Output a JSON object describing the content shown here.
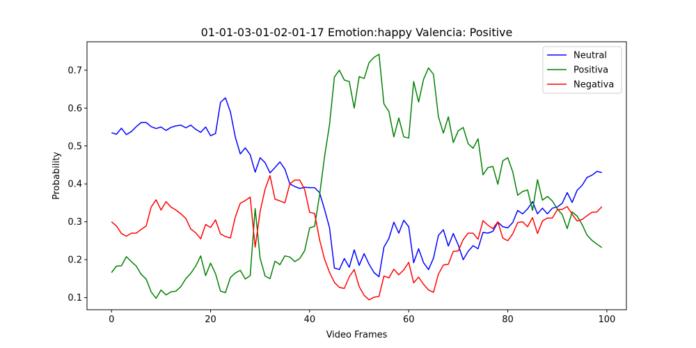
{
  "chart_data": {
    "type": "line",
    "title": "01-01-03-01-02-01-17 Emotion:happy Valencia: Positive",
    "xlabel": "Video Frames",
    "ylabel": "Probability",
    "xlim": [
      -4.95,
      103.95
    ],
    "ylim": [
      0.068,
      0.775
    ],
    "xticks": [
      0,
      20,
      40,
      60,
      80,
      100
    ],
    "yticks": [
      0.1,
      0.2,
      0.3,
      0.4,
      0.5,
      0.6,
      0.7
    ],
    "legend_position": "top-right",
    "series": [
      {
        "name": "Neutral",
        "color": "#0000ff",
        "values": [
          0.535,
          0.531,
          0.547,
          0.53,
          0.538,
          0.551,
          0.562,
          0.562,
          0.551,
          0.546,
          0.55,
          0.541,
          0.549,
          0.553,
          0.555,
          0.548,
          0.555,
          0.544,
          0.536,
          0.55,
          0.527,
          0.533,
          0.615,
          0.627,
          0.59,
          0.523,
          0.479,
          0.495,
          0.477,
          0.431,
          0.469,
          0.456,
          0.429,
          0.443,
          0.458,
          0.439,
          0.4,
          0.393,
          0.388,
          0.391,
          0.39,
          0.39,
          0.377,
          0.333,
          0.285,
          0.178,
          0.174,
          0.203,
          0.18,
          0.226,
          0.185,
          0.216,
          0.188,
          0.166,
          0.155,
          0.233,
          0.256,
          0.299,
          0.27,
          0.304,
          0.287,
          0.192,
          0.229,
          0.192,
          0.174,
          0.204,
          0.264,
          0.279,
          0.236,
          0.269,
          0.239,
          0.2,
          0.222,
          0.237,
          0.229,
          0.272,
          0.27,
          0.275,
          0.299,
          0.287,
          0.284,
          0.298,
          0.33,
          0.321,
          0.334,
          0.353,
          0.321,
          0.336,
          0.321,
          0.336,
          0.339,
          0.349,
          0.377,
          0.351,
          0.383,
          0.396,
          0.417,
          0.423,
          0.433,
          0.43
        ]
      },
      {
        "name": "Positiva",
        "color": "#008000",
        "values": [
          0.166,
          0.183,
          0.184,
          0.208,
          0.195,
          0.183,
          0.161,
          0.149,
          0.115,
          0.098,
          0.12,
          0.107,
          0.115,
          0.117,
          0.129,
          0.15,
          0.164,
          0.183,
          0.21,
          0.158,
          0.191,
          0.163,
          0.117,
          0.113,
          0.153,
          0.165,
          0.172,
          0.149,
          0.158,
          0.335,
          0.204,
          0.157,
          0.15,
          0.196,
          0.187,
          0.21,
          0.207,
          0.195,
          0.203,
          0.224,
          0.284,
          0.288,
          0.37,
          0.471,
          0.555,
          0.682,
          0.7,
          0.674,
          0.67,
          0.6,
          0.683,
          0.678,
          0.72,
          0.734,
          0.742,
          0.611,
          0.591,
          0.524,
          0.574,
          0.524,
          0.521,
          0.67,
          0.616,
          0.676,
          0.706,
          0.689,
          0.577,
          0.534,
          0.577,
          0.509,
          0.54,
          0.549,
          0.506,
          0.494,
          0.519,
          0.424,
          0.443,
          0.446,
          0.399,
          0.461,
          0.469,
          0.432,
          0.37,
          0.38,
          0.384,
          0.33,
          0.411,
          0.357,
          0.367,
          0.355,
          0.334,
          0.319,
          0.282,
          0.326,
          0.315,
          0.293,
          0.265,
          0.251,
          0.241,
          0.232
        ]
      },
      {
        "name": "Negativa",
        "color": "#ff0000",
        "values": [
          0.3,
          0.289,
          0.269,
          0.262,
          0.27,
          0.27,
          0.28,
          0.289,
          0.339,
          0.358,
          0.331,
          0.353,
          0.339,
          0.331,
          0.321,
          0.309,
          0.281,
          0.271,
          0.255,
          0.293,
          0.285,
          0.305,
          0.268,
          0.261,
          0.257,
          0.313,
          0.349,
          0.356,
          0.365,
          0.233,
          0.327,
          0.386,
          0.422,
          0.36,
          0.355,
          0.35,
          0.4,
          0.41,
          0.41,
          0.385,
          0.325,
          0.322,
          0.253,
          0.202,
          0.167,
          0.14,
          0.127,
          0.124,
          0.155,
          0.174,
          0.129,
          0.106,
          0.094,
          0.101,
          0.103,
          0.157,
          0.152,
          0.175,
          0.16,
          0.173,
          0.193,
          0.139,
          0.154,
          0.135,
          0.12,
          0.114,
          0.162,
          0.186,
          0.188,
          0.222,
          0.223,
          0.253,
          0.27,
          0.27,
          0.254,
          0.303,
          0.291,
          0.282,
          0.3,
          0.257,
          0.25,
          0.268,
          0.298,
          0.3,
          0.287,
          0.311,
          0.269,
          0.302,
          0.31,
          0.31,
          0.332,
          0.333,
          0.34,
          0.32,
          0.302,
          0.306,
          0.316,
          0.325,
          0.326,
          0.34
        ]
      }
    ]
  }
}
